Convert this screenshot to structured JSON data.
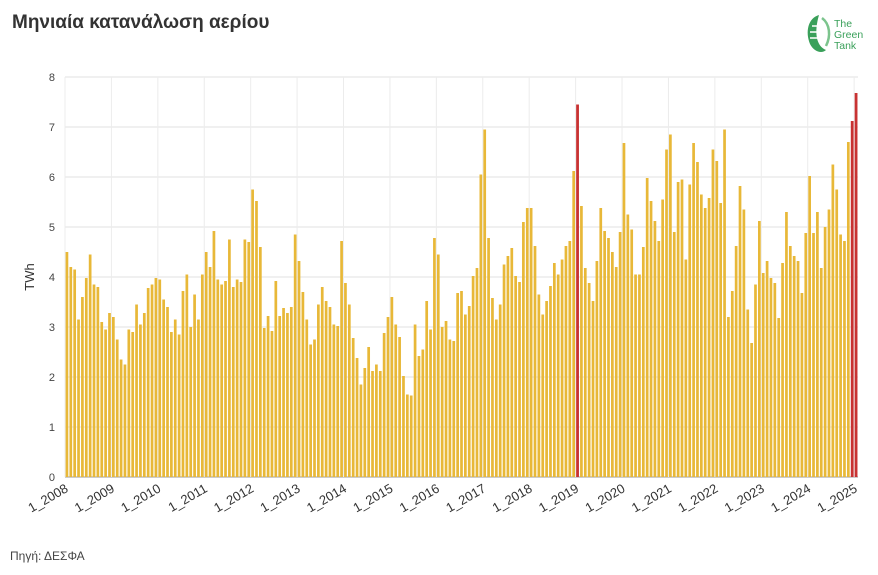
{
  "header": {
    "title": "Μηνιαία κατανάλωση αερίου"
  },
  "logo": {
    "line1": "The",
    "line2": "Green",
    "line3": "Tank",
    "color": "#3aa05a"
  },
  "footer": {
    "source": "Πηγή: ΔΕΣΦΑ"
  },
  "chart_data": {
    "type": "bar",
    "title": "Μηνιαία κατανάλωση αερίου",
    "xlabel": "",
    "ylabel": "TWh",
    "ylim": [
      0,
      8
    ],
    "yticks": [
      0,
      1,
      2,
      3,
      4,
      5,
      6,
      7,
      8
    ],
    "xtick_labels": [
      "1_2008",
      "1_2009",
      "1_2010",
      "1_2011",
      "1_2012",
      "1_2013",
      "1_2014",
      "1_2015",
      "1_2016",
      "1_2017",
      "1_2018",
      "1_2019",
      "1_2020",
      "1_2021",
      "1_2022",
      "1_2023",
      "1_2024",
      "1_2025"
    ],
    "start": "2008-01",
    "grid": true,
    "bar_color": "#e8b838",
    "highlight_color": "#c83232",
    "highlight_categories": [
      "2019-01",
      "2024-12",
      "2025-01"
    ],
    "values": [
      4.5,
      4.2,
      4.15,
      3.15,
      3.6,
      3.98,
      4.45,
      3.85,
      3.8,
      3.1,
      2.95,
      3.28,
      3.2,
      2.75,
      2.35,
      2.25,
      2.95,
      2.9,
      3.45,
      3.05,
      3.28,
      3.78,
      3.85,
      3.98,
      3.95,
      3.55,
      3.4,
      2.9,
      3.15,
      2.85,
      3.72,
      4.05,
      3.0,
      3.65,
      3.15,
      4.05,
      4.5,
      4.2,
      4.92,
      3.95,
      3.85,
      3.92,
      4.75,
      3.8,
      3.95,
      3.9,
      4.75,
      4.7,
      5.75,
      5.52,
      4.6,
      2.98,
      3.22,
      2.92,
      3.92,
      3.22,
      3.38,
      3.28,
      3.4,
      4.85,
      4.32,
      3.7,
      3.15,
      2.65,
      2.75,
      3.45,
      3.8,
      3.52,
      3.4,
      3.05,
      3.02,
      4.72,
      3.88,
      3.45,
      2.78,
      2.38,
      1.85,
      2.18,
      2.6,
      2.12,
      2.25,
      2.12,
      2.88,
      3.2,
      3.6,
      3.05,
      2.8,
      2.02,
      1.65,
      1.63,
      3.05,
      2.42,
      2.55,
      3.52,
      2.95,
      4.78,
      4.45,
      3.0,
      3.12,
      2.75,
      2.72,
      3.68,
      3.72,
      3.25,
      3.42,
      4.02,
      4.18,
      6.05,
      6.95,
      4.78,
      3.58,
      3.15,
      3.45,
      4.25,
      4.42,
      4.58,
      4.02,
      3.9,
      5.1,
      5.38,
      5.38,
      4.62,
      3.65,
      3.25,
      3.52,
      3.82,
      4.28,
      4.05,
      4.35,
      4.62,
      4.72,
      6.12,
      7.45,
      5.42,
      4.18,
      3.88,
      3.52,
      4.32,
      5.38,
      4.92,
      4.78,
      4.5,
      4.2,
      4.9,
      6.68,
      5.25,
      4.95,
      4.05,
      4.05,
      4.6,
      5.98,
      5.52,
      5.12,
      4.72,
      5.55,
      6.55,
      6.85,
      4.9,
      5.9,
      5.95,
      4.35,
      5.85,
      6.68,
      6.3,
      5.65,
      5.38,
      5.58,
      6.55,
      6.32,
      5.48,
      6.95,
      3.2,
      3.72,
      4.62,
      5.82,
      5.35,
      3.35,
      2.68,
      3.85,
      5.12,
      4.08,
      4.32,
      3.98,
      3.88,
      3.18,
      4.28,
      5.3,
      4.62,
      4.42,
      4.32,
      3.68,
      4.88,
      6.02,
      4.88,
      5.3,
      4.18,
      5.0,
      5.35,
      6.25,
      5.75,
      4.85,
      4.72,
      6.7,
      7.12,
      7.68
    ]
  }
}
